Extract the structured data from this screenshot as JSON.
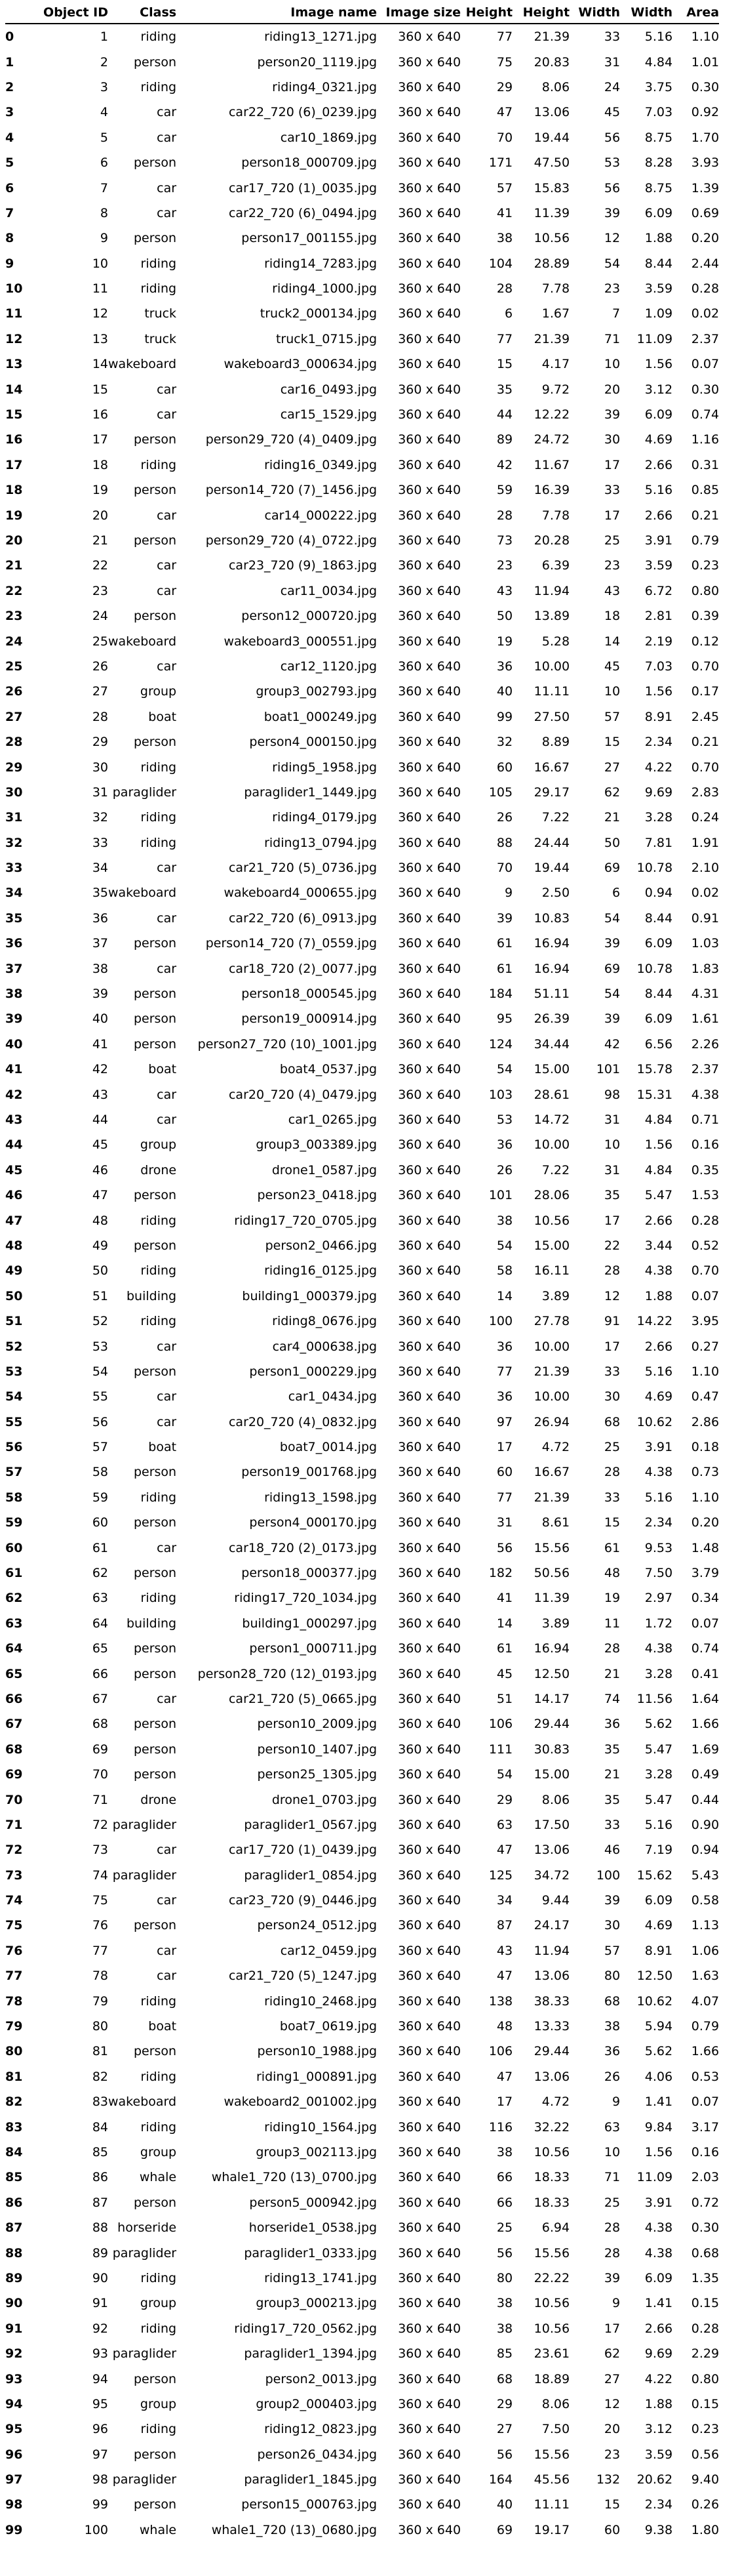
{
  "headers": [
    "",
    "Object ID",
    "Class",
    "Image name",
    "Image size",
    "Height",
    "Height",
    "Width",
    "Width",
    "Area"
  ],
  "rows": [
    [
      "0",
      "1",
      "riding",
      "riding13_1271.jpg",
      "360 x 640",
      "77",
      "21.39",
      "33",
      "5.16",
      "1.10"
    ],
    [
      "1",
      "2",
      "person",
      "person20_1119.jpg",
      "360 x 640",
      "75",
      "20.83",
      "31",
      "4.84",
      "1.01"
    ],
    [
      "2",
      "3",
      "riding",
      "riding4_0321.jpg",
      "360 x 640",
      "29",
      "8.06",
      "24",
      "3.75",
      "0.30"
    ],
    [
      "3",
      "4",
      "car",
      "car22_720 (6)_0239.jpg",
      "360 x 640",
      "47",
      "13.06",
      "45",
      "7.03",
      "0.92"
    ],
    [
      "4",
      "5",
      "car",
      "car10_1869.jpg",
      "360 x 640",
      "70",
      "19.44",
      "56",
      "8.75",
      "1.70"
    ],
    [
      "5",
      "6",
      "person",
      "person18_000709.jpg",
      "360 x 640",
      "171",
      "47.50",
      "53",
      "8.28",
      "3.93"
    ],
    [
      "6",
      "7",
      "car",
      "car17_720 (1)_0035.jpg",
      "360 x 640",
      "57",
      "15.83",
      "56",
      "8.75",
      "1.39"
    ],
    [
      "7",
      "8",
      "car",
      "car22_720 (6)_0494.jpg",
      "360 x 640",
      "41",
      "11.39",
      "39",
      "6.09",
      "0.69"
    ],
    [
      "8",
      "9",
      "person",
      "person17_001155.jpg",
      "360 x 640",
      "38",
      "10.56",
      "12",
      "1.88",
      "0.20"
    ],
    [
      "9",
      "10",
      "riding",
      "riding14_7283.jpg",
      "360 x 640",
      "104",
      "28.89",
      "54",
      "8.44",
      "2.44"
    ],
    [
      "10",
      "11",
      "riding",
      "riding4_1000.jpg",
      "360 x 640",
      "28",
      "7.78",
      "23",
      "3.59",
      "0.28"
    ],
    [
      "11",
      "12",
      "truck",
      "truck2_000134.jpg",
      "360 x 640",
      "6",
      "1.67",
      "7",
      "1.09",
      "0.02"
    ],
    [
      "12",
      "13",
      "truck",
      "truck1_0715.jpg",
      "360 x 640",
      "77",
      "21.39",
      "71",
      "11.09",
      "2.37"
    ],
    [
      "13",
      "14",
      "wakeboard",
      "wakeboard3_000634.jpg",
      "360 x 640",
      "15",
      "4.17",
      "10",
      "1.56",
      "0.07"
    ],
    [
      "14",
      "15",
      "car",
      "car16_0493.jpg",
      "360 x 640",
      "35",
      "9.72",
      "20",
      "3.12",
      "0.30"
    ],
    [
      "15",
      "16",
      "car",
      "car15_1529.jpg",
      "360 x 640",
      "44",
      "12.22",
      "39",
      "6.09",
      "0.74"
    ],
    [
      "16",
      "17",
      "person",
      "person29_720 (4)_0409.jpg",
      "360 x 640",
      "89",
      "24.72",
      "30",
      "4.69",
      "1.16"
    ],
    [
      "17",
      "18",
      "riding",
      "riding16_0349.jpg",
      "360 x 640",
      "42",
      "11.67",
      "17",
      "2.66",
      "0.31"
    ],
    [
      "18",
      "19",
      "person",
      "person14_720 (7)_1456.jpg",
      "360 x 640",
      "59",
      "16.39",
      "33",
      "5.16",
      "0.85"
    ],
    [
      "19",
      "20",
      "car",
      "car14_000222.jpg",
      "360 x 640",
      "28",
      "7.78",
      "17",
      "2.66",
      "0.21"
    ],
    [
      "20",
      "21",
      "person",
      "person29_720 (4)_0722.jpg",
      "360 x 640",
      "73",
      "20.28",
      "25",
      "3.91",
      "0.79"
    ],
    [
      "21",
      "22",
      "car",
      "car23_720 (9)_1863.jpg",
      "360 x 640",
      "23",
      "6.39",
      "23",
      "3.59",
      "0.23"
    ],
    [
      "22",
      "23",
      "car",
      "car11_0034.jpg",
      "360 x 640",
      "43",
      "11.94",
      "43",
      "6.72",
      "0.80"
    ],
    [
      "23",
      "24",
      "person",
      "person12_000720.jpg",
      "360 x 640",
      "50",
      "13.89",
      "18",
      "2.81",
      "0.39"
    ],
    [
      "24",
      "25",
      "wakeboard",
      "wakeboard3_000551.jpg",
      "360 x 640",
      "19",
      "5.28",
      "14",
      "2.19",
      "0.12"
    ],
    [
      "25",
      "26",
      "car",
      "car12_1120.jpg",
      "360 x 640",
      "36",
      "10.00",
      "45",
      "7.03",
      "0.70"
    ],
    [
      "26",
      "27",
      "group",
      "group3_002793.jpg",
      "360 x 640",
      "40",
      "11.11",
      "10",
      "1.56",
      "0.17"
    ],
    [
      "27",
      "28",
      "boat",
      "boat1_000249.jpg",
      "360 x 640",
      "99",
      "27.50",
      "57",
      "8.91",
      "2.45"
    ],
    [
      "28",
      "29",
      "person",
      "person4_000150.jpg",
      "360 x 640",
      "32",
      "8.89",
      "15",
      "2.34",
      "0.21"
    ],
    [
      "29",
      "30",
      "riding",
      "riding5_1958.jpg",
      "360 x 640",
      "60",
      "16.67",
      "27",
      "4.22",
      "0.70"
    ],
    [
      "30",
      "31",
      "paraglider",
      "paraglider1_1449.jpg",
      "360 x 640",
      "105",
      "29.17",
      "62",
      "9.69",
      "2.83"
    ],
    [
      "31",
      "32",
      "riding",
      "riding4_0179.jpg",
      "360 x 640",
      "26",
      "7.22",
      "21",
      "3.28",
      "0.24"
    ],
    [
      "32",
      "33",
      "riding",
      "riding13_0794.jpg",
      "360 x 640",
      "88",
      "24.44",
      "50",
      "7.81",
      "1.91"
    ],
    [
      "33",
      "34",
      "car",
      "car21_720 (5)_0736.jpg",
      "360 x 640",
      "70",
      "19.44",
      "69",
      "10.78",
      "2.10"
    ],
    [
      "34",
      "35",
      "wakeboard",
      "wakeboard4_000655.jpg",
      "360 x 640",
      "9",
      "2.50",
      "6",
      "0.94",
      "0.02"
    ],
    [
      "35",
      "36",
      "car",
      "car22_720 (6)_0913.jpg",
      "360 x 640",
      "39",
      "10.83",
      "54",
      "8.44",
      "0.91"
    ],
    [
      "36",
      "37",
      "person",
      "person14_720 (7)_0559.jpg",
      "360 x 640",
      "61",
      "16.94",
      "39",
      "6.09",
      "1.03"
    ],
    [
      "37",
      "38",
      "car",
      "car18_720 (2)_0077.jpg",
      "360 x 640",
      "61",
      "16.94",
      "69",
      "10.78",
      "1.83"
    ],
    [
      "38",
      "39",
      "person",
      "person18_000545.jpg",
      "360 x 640",
      "184",
      "51.11",
      "54",
      "8.44",
      "4.31"
    ],
    [
      "39",
      "40",
      "person",
      "person19_000914.jpg",
      "360 x 640",
      "95",
      "26.39",
      "39",
      "6.09",
      "1.61"
    ],
    [
      "40",
      "41",
      "person",
      "person27_720 (10)_1001.jpg",
      "360 x 640",
      "124",
      "34.44",
      "42",
      "6.56",
      "2.26"
    ],
    [
      "41",
      "42",
      "boat",
      "boat4_0537.jpg",
      "360 x 640",
      "54",
      "15.00",
      "101",
      "15.78",
      "2.37"
    ],
    [
      "42",
      "43",
      "car",
      "car20_720 (4)_0479.jpg",
      "360 x 640",
      "103",
      "28.61",
      "98",
      "15.31",
      "4.38"
    ],
    [
      "43",
      "44",
      "car",
      "car1_0265.jpg",
      "360 x 640",
      "53",
      "14.72",
      "31",
      "4.84",
      "0.71"
    ],
    [
      "44",
      "45",
      "group",
      "group3_003389.jpg",
      "360 x 640",
      "36",
      "10.00",
      "10",
      "1.56",
      "0.16"
    ],
    [
      "45",
      "46",
      "drone",
      "drone1_0587.jpg",
      "360 x 640",
      "26",
      "7.22",
      "31",
      "4.84",
      "0.35"
    ],
    [
      "46",
      "47",
      "person",
      "person23_0418.jpg",
      "360 x 640",
      "101",
      "28.06",
      "35",
      "5.47",
      "1.53"
    ],
    [
      "47",
      "48",
      "riding",
      "riding17_720_0705.jpg",
      "360 x 640",
      "38",
      "10.56",
      "17",
      "2.66",
      "0.28"
    ],
    [
      "48",
      "49",
      "person",
      "person2_0466.jpg",
      "360 x 640",
      "54",
      "15.00",
      "22",
      "3.44",
      "0.52"
    ],
    [
      "49",
      "50",
      "riding",
      "riding16_0125.jpg",
      "360 x 640",
      "58",
      "16.11",
      "28",
      "4.38",
      "0.70"
    ],
    [
      "50",
      "51",
      "building",
      "building1_000379.jpg",
      "360 x 640",
      "14",
      "3.89",
      "12",
      "1.88",
      "0.07"
    ],
    [
      "51",
      "52",
      "riding",
      "riding8_0676.jpg",
      "360 x 640",
      "100",
      "27.78",
      "91",
      "14.22",
      "3.95"
    ],
    [
      "52",
      "53",
      "car",
      "car4_000638.jpg",
      "360 x 640",
      "36",
      "10.00",
      "17",
      "2.66",
      "0.27"
    ],
    [
      "53",
      "54",
      "person",
      "person1_000229.jpg",
      "360 x 640",
      "77",
      "21.39",
      "33",
      "5.16",
      "1.10"
    ],
    [
      "54",
      "55",
      "car",
      "car1_0434.jpg",
      "360 x 640",
      "36",
      "10.00",
      "30",
      "4.69",
      "0.47"
    ],
    [
      "55",
      "56",
      "car",
      "car20_720 (4)_0832.jpg",
      "360 x 640",
      "97",
      "26.94",
      "68",
      "10.62",
      "2.86"
    ],
    [
      "56",
      "57",
      "boat",
      "boat7_0014.jpg",
      "360 x 640",
      "17",
      "4.72",
      "25",
      "3.91",
      "0.18"
    ],
    [
      "57",
      "58",
      "person",
      "person19_001768.jpg",
      "360 x 640",
      "60",
      "16.67",
      "28",
      "4.38",
      "0.73"
    ],
    [
      "58",
      "59",
      "riding",
      "riding13_1598.jpg",
      "360 x 640",
      "77",
      "21.39",
      "33",
      "5.16",
      "1.10"
    ],
    [
      "59",
      "60",
      "person",
      "person4_000170.jpg",
      "360 x 640",
      "31",
      "8.61",
      "15",
      "2.34",
      "0.20"
    ],
    [
      "60",
      "61",
      "car",
      "car18_720 (2)_0173.jpg",
      "360 x 640",
      "56",
      "15.56",
      "61",
      "9.53",
      "1.48"
    ],
    [
      "61",
      "62",
      "person",
      "person18_000377.jpg",
      "360 x 640",
      "182",
      "50.56",
      "48",
      "7.50",
      "3.79"
    ],
    [
      "62",
      "63",
      "riding",
      "riding17_720_1034.jpg",
      "360 x 640",
      "41",
      "11.39",
      "19",
      "2.97",
      "0.34"
    ],
    [
      "63",
      "64",
      "building",
      "building1_000297.jpg",
      "360 x 640",
      "14",
      "3.89",
      "11",
      "1.72",
      "0.07"
    ],
    [
      "64",
      "65",
      "person",
      "person1_000711.jpg",
      "360 x 640",
      "61",
      "16.94",
      "28",
      "4.38",
      "0.74"
    ],
    [
      "65",
      "66",
      "person",
      "person28_720 (12)_0193.jpg",
      "360 x 640",
      "45",
      "12.50",
      "21",
      "3.28",
      "0.41"
    ],
    [
      "66",
      "67",
      "car",
      "car21_720 (5)_0665.jpg",
      "360 x 640",
      "51",
      "14.17",
      "74",
      "11.56",
      "1.64"
    ],
    [
      "67",
      "68",
      "person",
      "person10_2009.jpg",
      "360 x 640",
      "106",
      "29.44",
      "36",
      "5.62",
      "1.66"
    ],
    [
      "68",
      "69",
      "person",
      "person10_1407.jpg",
      "360 x 640",
      "111",
      "30.83",
      "35",
      "5.47",
      "1.69"
    ],
    [
      "69",
      "70",
      "person",
      "person25_1305.jpg",
      "360 x 640",
      "54",
      "15.00",
      "21",
      "3.28",
      "0.49"
    ],
    [
      "70",
      "71",
      "drone",
      "drone1_0703.jpg",
      "360 x 640",
      "29",
      "8.06",
      "35",
      "5.47",
      "0.44"
    ],
    [
      "71",
      "72",
      "paraglider",
      "paraglider1_0567.jpg",
      "360 x 640",
      "63",
      "17.50",
      "33",
      "5.16",
      "0.90"
    ],
    [
      "72",
      "73",
      "car",
      "car17_720 (1)_0439.jpg",
      "360 x 640",
      "47",
      "13.06",
      "46",
      "7.19",
      "0.94"
    ],
    [
      "73",
      "74",
      "paraglider",
      "paraglider1_0854.jpg",
      "360 x 640",
      "125",
      "34.72",
      "100",
      "15.62",
      "5.43"
    ],
    [
      "74",
      "75",
      "car",
      "car23_720 (9)_0446.jpg",
      "360 x 640",
      "34",
      "9.44",
      "39",
      "6.09",
      "0.58"
    ],
    [
      "75",
      "76",
      "person",
      "person24_0512.jpg",
      "360 x 640",
      "87",
      "24.17",
      "30",
      "4.69",
      "1.13"
    ],
    [
      "76",
      "77",
      "car",
      "car12_0459.jpg",
      "360 x 640",
      "43",
      "11.94",
      "57",
      "8.91",
      "1.06"
    ],
    [
      "77",
      "78",
      "car",
      "car21_720 (5)_1247.jpg",
      "360 x 640",
      "47",
      "13.06",
      "80",
      "12.50",
      "1.63"
    ],
    [
      "78",
      "79",
      "riding",
      "riding10_2468.jpg",
      "360 x 640",
      "138",
      "38.33",
      "68",
      "10.62",
      "4.07"
    ],
    [
      "79",
      "80",
      "boat",
      "boat7_0619.jpg",
      "360 x 640",
      "48",
      "13.33",
      "38",
      "5.94",
      "0.79"
    ],
    [
      "80",
      "81",
      "person",
      "person10_1988.jpg",
      "360 x 640",
      "106",
      "29.44",
      "36",
      "5.62",
      "1.66"
    ],
    [
      "81",
      "82",
      "riding",
      "riding1_000891.jpg",
      "360 x 640",
      "47",
      "13.06",
      "26",
      "4.06",
      "0.53"
    ],
    [
      "82",
      "83",
      "wakeboard",
      "wakeboard2_001002.jpg",
      "360 x 640",
      "17",
      "4.72",
      "9",
      "1.41",
      "0.07"
    ],
    [
      "83",
      "84",
      "riding",
      "riding10_1564.jpg",
      "360 x 640",
      "116",
      "32.22",
      "63",
      "9.84",
      "3.17"
    ],
    [
      "84",
      "85",
      "group",
      "group3_002113.jpg",
      "360 x 640",
      "38",
      "10.56",
      "10",
      "1.56",
      "0.16"
    ],
    [
      "85",
      "86",
      "whale",
      "whale1_720 (13)_0700.jpg",
      "360 x 640",
      "66",
      "18.33",
      "71",
      "11.09",
      "2.03"
    ],
    [
      "86",
      "87",
      "person",
      "person5_000942.jpg",
      "360 x 640",
      "66",
      "18.33",
      "25",
      "3.91",
      "0.72"
    ],
    [
      "87",
      "88",
      "horseride",
      "horseride1_0538.jpg",
      "360 x 640",
      "25",
      "6.94",
      "28",
      "4.38",
      "0.30"
    ],
    [
      "88",
      "89",
      "paraglider",
      "paraglider1_0333.jpg",
      "360 x 640",
      "56",
      "15.56",
      "28",
      "4.38",
      "0.68"
    ],
    [
      "89",
      "90",
      "riding",
      "riding13_1741.jpg",
      "360 x 640",
      "80",
      "22.22",
      "39",
      "6.09",
      "1.35"
    ],
    [
      "90",
      "91",
      "group",
      "group3_000213.jpg",
      "360 x 640",
      "38",
      "10.56",
      "9",
      "1.41",
      "0.15"
    ],
    [
      "91",
      "92",
      "riding",
      "riding17_720_0562.jpg",
      "360 x 640",
      "38",
      "10.56",
      "17",
      "2.66",
      "0.28"
    ],
    [
      "92",
      "93",
      "paraglider",
      "paraglider1_1394.jpg",
      "360 x 640",
      "85",
      "23.61",
      "62",
      "9.69",
      "2.29"
    ],
    [
      "93",
      "94",
      "person",
      "person2_0013.jpg",
      "360 x 640",
      "68",
      "18.89",
      "27",
      "4.22",
      "0.80"
    ],
    [
      "94",
      "95",
      "group",
      "group2_000403.jpg",
      "360 x 640",
      "29",
      "8.06",
      "12",
      "1.88",
      "0.15"
    ],
    [
      "95",
      "96",
      "riding",
      "riding12_0823.jpg",
      "360 x 640",
      "27",
      "7.50",
      "20",
      "3.12",
      "0.23"
    ],
    [
      "96",
      "97",
      "person",
      "person26_0434.jpg",
      "360 x 640",
      "56",
      "15.56",
      "23",
      "3.59",
      "0.56"
    ],
    [
      "97",
      "98",
      "paraglider",
      "paraglider1_1845.jpg",
      "360 x 640",
      "164",
      "45.56",
      "132",
      "20.62",
      "9.40"
    ],
    [
      "98",
      "99",
      "person",
      "person15_000763.jpg",
      "360 x 640",
      "40",
      "11.11",
      "15",
      "2.34",
      "0.26"
    ],
    [
      "99",
      "100",
      "whale",
      "whale1_720 (13)_0680.jpg",
      "360 x 640",
      "69",
      "19.17",
      "60",
      "9.38",
      "1.80"
    ]
  ]
}
